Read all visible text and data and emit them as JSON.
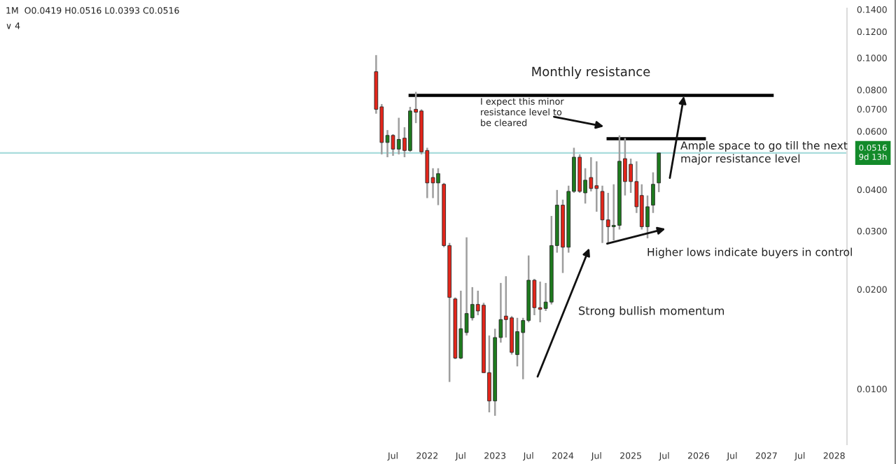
{
  "chart_data": {
    "type": "candlestick",
    "x": [
      "2021-04",
      "2021-05",
      "2021-06",
      "2021-07",
      "2021-08",
      "2021-09",
      "2021-10",
      "2021-11",
      "2021-12",
      "2022-01",
      "2022-02",
      "2022-03",
      "2022-04",
      "2022-05",
      "2022-06",
      "2022-07",
      "2022-08",
      "2022-09",
      "2022-10",
      "2022-11",
      "2022-12",
      "2023-01",
      "2023-02",
      "2023-03",
      "2023-04",
      "2023-05",
      "2023-06",
      "2023-07",
      "2023-08",
      "2023-09",
      "2023-10",
      "2023-11",
      "2023-12",
      "2024-01",
      "2024-02",
      "2024-03",
      "2024-04",
      "2024-05",
      "2024-06",
      "2024-07",
      "2024-08",
      "2024-09",
      "2024-10",
      "2024-11",
      "2024-12",
      "2025-01",
      "2025-02",
      "2025-03",
      "2025-04",
      "2025-05",
      "2025-06"
    ],
    "ohlc": [
      [
        0.0908,
        0.1019,
        0.0678,
        0.0699
      ],
      [
        0.0711,
        0.0725,
        0.0511,
        0.0555
      ],
      [
        0.0555,
        0.0605,
        0.0501,
        0.0583
      ],
      [
        0.0583,
        0.0588,
        0.0506,
        0.053
      ],
      [
        0.053,
        0.0659,
        0.0511,
        0.0567
      ],
      [
        0.0572,
        0.0617,
        0.0501,
        0.0525
      ],
      [
        0.0525,
        0.0711,
        0.052,
        0.0691
      ],
      [
        0.0699,
        0.0789,
        0.0635,
        0.0685
      ],
      [
        0.0691,
        0.0699,
        0.0511,
        0.052
      ],
      [
        0.0525,
        0.0535,
        0.0377,
        0.0419
      ],
      [
        0.0435,
        0.0464,
        0.0377,
        0.0419
      ],
      [
        0.0419,
        0.0464,
        0.0359,
        0.0447
      ],
      [
        0.0415,
        0.0419,
        0.0268,
        0.0271
      ],
      [
        0.0271,
        0.0276,
        0.0105,
        0.0189
      ],
      [
        0.0187,
        0.0189,
        0.0123,
        0.0124
      ],
      [
        0.0124,
        0.0198,
        0.0123,
        0.0152
      ],
      [
        0.0148,
        0.0287,
        0.0145,
        0.0169
      ],
      [
        0.0164,
        0.0203,
        0.0161,
        0.018
      ],
      [
        0.018,
        0.0198,
        0.0167,
        0.0172
      ],
      [
        0.0179,
        0.0182,
        0.0112,
        0.0112
      ],
      [
        0.0112,
        0.0145,
        0.0085,
        0.0092
      ],
      [
        0.0092,
        0.0152,
        0.0083,
        0.0143
      ],
      [
        0.0143,
        0.0209,
        0.0138,
        0.0162
      ],
      [
        0.0166,
        0.0219,
        0.0143,
        0.0162
      ],
      [
        0.0164,
        0.0166,
        0.0127,
        0.0129
      ],
      [
        0.0127,
        0.0164,
        0.0117,
        0.0149
      ],
      [
        0.0148,
        0.0164,
        0.0107,
        0.0161
      ],
      [
        0.0161,
        0.0253,
        0.0159,
        0.0213
      ],
      [
        0.0213,
        0.0215,
        0.0167,
        0.0176
      ],
      [
        0.0176,
        0.0211,
        0.0159,
        0.0174
      ],
      [
        0.0175,
        0.0209,
        0.0172,
        0.0183
      ],
      [
        0.0183,
        0.0333,
        0.018,
        0.0271
      ],
      [
        0.0271,
        0.0399,
        0.0258,
        0.0359
      ],
      [
        0.0359,
        0.0373,
        0.0224,
        0.0268
      ],
      [
        0.0268,
        0.0411,
        0.0258,
        0.0395
      ],
      [
        0.0395,
        0.0535,
        0.0391,
        0.0501
      ],
      [
        0.0501,
        0.0511,
        0.0391,
        0.0395
      ],
      [
        0.0391,
        0.0464,
        0.0363,
        0.0427
      ],
      [
        0.0435,
        0.0501,
        0.0395,
        0.0403
      ],
      [
        0.0411,
        0.0487,
        0.0343,
        0.0403
      ],
      [
        0.0395,
        0.0411,
        0.0276,
        0.0324
      ],
      [
        0.0324,
        0.0391,
        0.0276,
        0.0309
      ],
      [
        0.0309,
        0.0415,
        0.0281,
        0.0312
      ],
      [
        0.0312,
        0.0583,
        0.0303,
        0.0487
      ],
      [
        0.0496,
        0.0572,
        0.0384,
        0.0423
      ],
      [
        0.0477,
        0.0496,
        0.0391,
        0.0423
      ],
      [
        0.0423,
        0.0487,
        0.034,
        0.0355
      ],
      [
        0.0384,
        0.0415,
        0.0303,
        0.0309
      ],
      [
        0.0309,
        0.0384,
        0.0285,
        0.0355
      ],
      [
        0.0359,
        0.0451,
        0.034,
        0.0415
      ],
      [
        0.0419,
        0.0516,
        0.0393,
        0.0516
      ]
    ],
    "colors": [
      "#e3261b",
      "#e3261b",
      "#1e7b1e",
      "#e3261b",
      "#1e7b1e",
      "#e3261b",
      "#1e7b1e",
      "#e3261b",
      "#e3261b",
      "#e3261b",
      "#e3261b",
      "#1e7b1e",
      "#e3261b",
      "#e3261b",
      "#e3261b",
      "#1e7b1e",
      "#1e7b1e",
      "#1e7b1e",
      "#e3261b",
      "#e3261b",
      "#e3261b",
      "#1e7b1e",
      "#1e7b1e",
      "#e3261b",
      "#e3261b",
      "#1e7b1e",
      "#1e7b1e",
      "#1e7b1e",
      "#e3261b",
      "#e3261b",
      "#1e7b1e",
      "#1e7b1e",
      "#1e7b1e",
      "#e3261b",
      "#1e7b1e",
      "#1e7b1e",
      "#e3261b",
      "#1e7b1e",
      "#e3261b",
      "#e3261b",
      "#e3261b",
      "#e3261b",
      "#1e7b1e",
      "#1e7b1e",
      "#e3261b",
      "#e3261b",
      "#e3261b",
      "#e3261b",
      "#1e7b1e",
      "#1e7b1e",
      "#1e7b1e"
    ],
    "series": [
      {
        "type": "line",
        "x": [
          "2021-10",
          "2027-02"
        ],
        "values": [
          0.077,
          0.077
        ],
        "color": "#000000"
      },
      {
        "type": "line",
        "x": [
          "2024-09",
          "2026-02"
        ],
        "values": [
          0.057,
          0.057
        ],
        "color": "#000000"
      }
    ],
    "ref_lines": [
      {
        "axis": "y",
        "value": 0.0516,
        "label": "0.0516\n9d 13h",
        "color": "#a8dcdc"
      }
    ],
    "log": "y",
    "ylim": [
      0.0068,
      0.141
    ],
    "yticks": [
      {
        "value": 0.01,
        "label": "0.0100"
      },
      {
        "value": 0.02,
        "label": "0.0200"
      },
      {
        "value": 0.03,
        "label": "0.0300"
      },
      {
        "value": 0.04,
        "label": "0.0400"
      },
      {
        "value": 0.06,
        "label": "0.0600"
      },
      {
        "value": 0.07,
        "label": "0.0700"
      },
      {
        "value": 0.08,
        "label": "0.0800"
      },
      {
        "value": 0.1,
        "label": "0.1000"
      },
      {
        "value": 0.12,
        "label": "0.1200"
      },
      {
        "value": 0.14,
        "label": "0.1400"
      }
    ],
    "xlim": [
      "2015-09-15",
      "2028-03-10"
    ],
    "xticks": [
      {
        "value": "2021-07",
        "label": "Jul"
      },
      {
        "value": "2022-01",
        "label": "2022"
      },
      {
        "value": "2022-07",
        "label": "Jul"
      },
      {
        "value": "2023-01",
        "label": "2023"
      },
      {
        "value": "2023-07",
        "label": "Jul"
      },
      {
        "value": "2024-01",
        "label": "2024"
      },
      {
        "value": "2024-07",
        "label": "Jul"
      },
      {
        "value": "2025-01",
        "label": "2025"
      },
      {
        "value": "2025-07",
        "label": "Jul"
      },
      {
        "value": "2026-01",
        "label": "2026"
      },
      {
        "value": "2026-07",
        "label": "Jul"
      },
      {
        "value": "2027-01",
        "label": "2027"
      },
      {
        "value": "2027-07",
        "label": "Jul"
      },
      {
        "value": "2028-01",
        "label": "2028"
      }
    ],
    "grid": false,
    "annotations": [
      "1M  O0.0419 H0.0516 L0.0393 C0.0516",
      "∨ 4",
      "Monthly resistance",
      "I expect this minor\nresistance level to\nbe cleared",
      "Ample space to go till the next\nmajor resistance level",
      "Higher lows indicate buyers in control",
      "Strong bullish momentum"
    ]
  }
}
